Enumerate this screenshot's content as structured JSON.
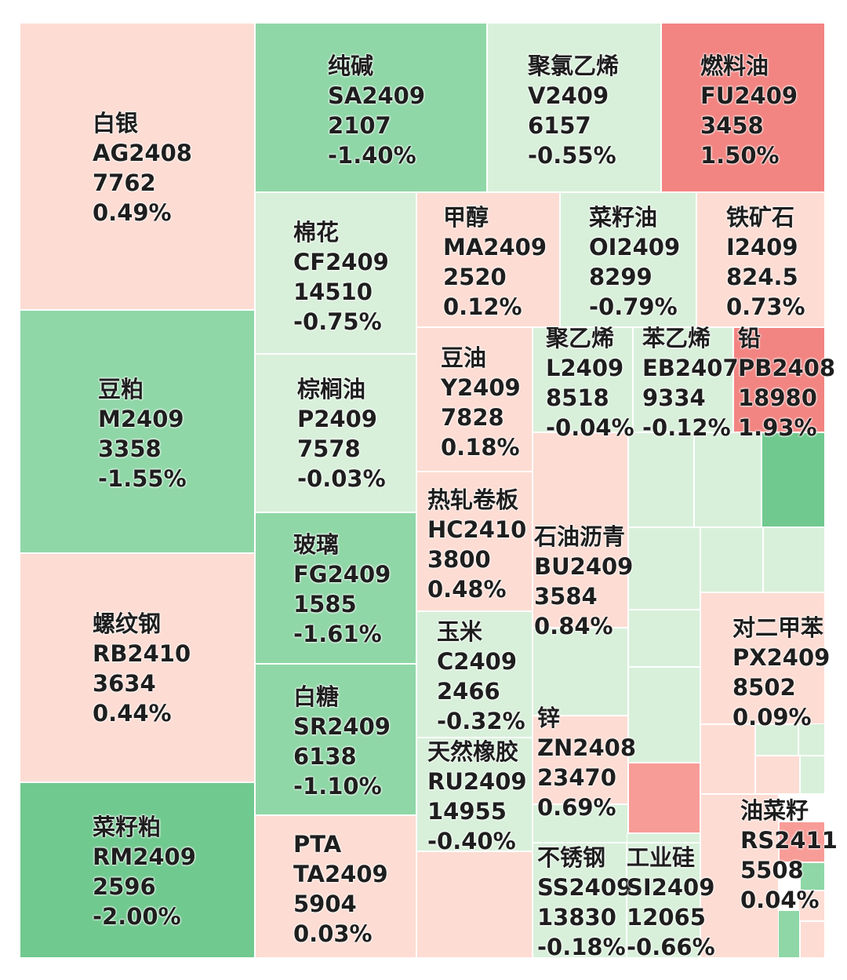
{
  "colors": {
    "up_light": "#fddcd3",
    "up_medium": "#f89c97",
    "up_strong": "#f28481",
    "down_light": "#d8f0da",
    "down_medium": "#8fd7a7",
    "down_strong": "#70c98f"
  },
  "chart_data": {
    "type": "treemap",
    "metric": "daily change %",
    "items": [
      {
        "name": "白银",
        "code": "AG2408",
        "price": "7762",
        "change": "0.49%",
        "change_value": 0.49
      },
      {
        "name": "纯碱",
        "code": "SA2409",
        "price": "2107",
        "change": "-1.40%",
        "change_value": -1.4
      },
      {
        "name": "聚氯乙烯",
        "code": "V2409",
        "price": "6157",
        "change": "-0.55%",
        "change_value": -0.55
      },
      {
        "name": "燃料油",
        "code": "FU2409",
        "price": "3458",
        "change": "1.50%",
        "change_value": 1.5
      },
      {
        "name": "棉花",
        "code": "CF2409",
        "price": "14510",
        "change": "-0.75%",
        "change_value": -0.75
      },
      {
        "name": "甲醇",
        "code": "MA2409",
        "price": "2520",
        "change": "0.12%",
        "change_value": 0.12
      },
      {
        "name": "菜籽油",
        "code": "OI2409",
        "price": "8299",
        "change": "-0.79%",
        "change_value": -0.79
      },
      {
        "name": "铁矿石",
        "code": "I2409",
        "price": "824.5",
        "change": "0.73%",
        "change_value": 0.73
      },
      {
        "name": "豆粕",
        "code": "M2409",
        "price": "3358",
        "change": "-1.55%",
        "change_value": -1.55
      },
      {
        "name": "棕榈油",
        "code": "P2409",
        "price": "7578",
        "change": "-0.03%",
        "change_value": -0.03
      },
      {
        "name": "豆油",
        "code": "Y2409",
        "price": "7828",
        "change": "0.18%",
        "change_value": 0.18
      },
      {
        "name": "聚乙烯",
        "code": "L2409",
        "price": "8518",
        "change": "-0.04%",
        "change_value": -0.04
      },
      {
        "name": "苯乙烯",
        "code": "EB2407",
        "price": "9334",
        "change": "-0.12%",
        "change_value": -0.12
      },
      {
        "name": "铅",
        "code": "PB2408",
        "price": "18980",
        "change": "1.93%",
        "change_value": 1.93
      },
      {
        "name": "热轧卷板",
        "code": "HC2410",
        "price": "3800",
        "change": "0.48%",
        "change_value": 0.48
      },
      {
        "name": "石油沥青",
        "code": "BU2409",
        "price": "3584",
        "change": "0.84%",
        "change_value": 0.84
      },
      {
        "name": "玻璃",
        "code": "FG2409",
        "price": "1585",
        "change": "-1.61%",
        "change_value": -1.61
      },
      {
        "name": "螺纹钢",
        "code": "RB2410",
        "price": "3634",
        "change": "0.44%",
        "change_value": 0.44
      },
      {
        "name": "玉米",
        "code": "C2409",
        "price": "2466",
        "change": "-0.32%",
        "change_value": -0.32
      },
      {
        "name": "对二甲苯",
        "code": "PX2409",
        "price": "8502",
        "change": "0.09%",
        "change_value": 0.09
      },
      {
        "name": "白糖",
        "code": "SR2409",
        "price": "6138",
        "change": "-1.10%",
        "change_value": -1.1
      },
      {
        "name": "锌",
        "code": "ZN2408",
        "price": "23470",
        "change": "0.69%",
        "change_value": 0.69
      },
      {
        "name": "天然橡胶",
        "code": "RU2409",
        "price": "14955",
        "change": "-0.40%",
        "change_value": -0.4
      },
      {
        "name": "菜籽粕",
        "code": "RM2409",
        "price": "2596",
        "change": "-2.00%",
        "change_value": -2.0
      },
      {
        "name": "PTA",
        "code": "TA2409",
        "price": "5904",
        "change": "0.03%",
        "change_value": 0.03
      },
      {
        "name": "不锈钢",
        "code": "SS2409",
        "price": "13830",
        "change": "-0.18%",
        "change_value": -0.18
      },
      {
        "name": "工业硅",
        "code": "SI2409",
        "price": "12065",
        "change": "-0.66%",
        "change_value": -0.66
      },
      {
        "name": "油菜籽",
        "code": "RS2411",
        "price": "5508",
        "change": "0.04%",
        "change_value": 0.04
      }
    ]
  }
}
